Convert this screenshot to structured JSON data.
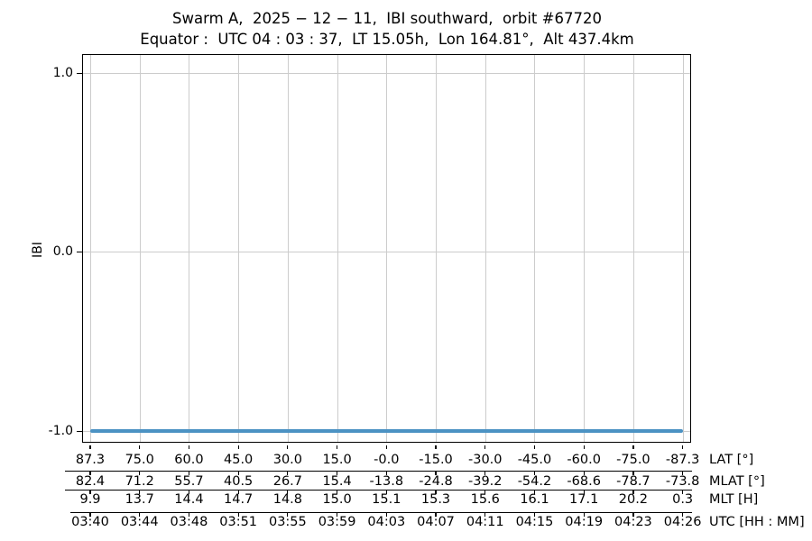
{
  "title": "Swarm A,  2025 − 12 − 11,  IBI southward,  orbit #67720",
  "subtitle": "Equator :  UTC 04 : 03 : 37,  LT 15.05h,  Lon 164.81°,  Alt 437.4km",
  "y_axis": {
    "label": "IBI",
    "ticks": [
      "1.0",
      "0.0",
      "-1.0"
    ]
  },
  "x_rows": [
    {
      "label": "LAT [°]",
      "values": [
        "87.3",
        "75.0",
        "60.0",
        "45.0",
        "30.0",
        "15.0",
        "-0.0",
        "-15.0",
        "-30.0",
        "-45.0",
        "-60.0",
        "-75.0",
        "-87.3"
      ]
    },
    {
      "label": "MLAT [°]",
      "values": [
        "82.4",
        "71.2",
        "55.7",
        "40.5",
        "26.7",
        "15.4",
        "-13.8",
        "-24.8",
        "-39.2",
        "-54.2",
        "-68.6",
        "-78.7",
        "-73.8"
      ]
    },
    {
      "label": "MLT [H]",
      "values": [
        "9.9",
        "13.7",
        "14.4",
        "14.7",
        "14.8",
        "15.0",
        "15.1",
        "15.3",
        "15.6",
        "16.1",
        "17.1",
        "20.2",
        "0.3"
      ]
    },
    {
      "label": "UTC [HH : MM]",
      "values": [
        "03:40",
        "03:44",
        "03:48",
        "03:51",
        "03:55",
        "03:59",
        "04:03",
        "04:07",
        "04:11",
        "04:15",
        "04:19",
        "04:23",
        "04:26"
      ]
    }
  ],
  "colors": {
    "line": "#4b92c3",
    "grid": "#cccccc",
    "axis": "#000000"
  },
  "chart_data": {
    "type": "line",
    "title": "Swarm A, 2025-12-11, IBI southward, orbit #67720",
    "subtitle": "Equator: UTC 04:03:37, LT 15.05h, Lon 164.81°, Alt 437.4km",
    "ylabel": "IBI",
    "ylim": [
      -1.1,
      1.1
    ],
    "yticks": [
      1.0,
      0.0,
      -1.0
    ],
    "grid": true,
    "legend": "none",
    "x_axis_rows": [
      {
        "name": "LAT [°]",
        "ticks": [
          87.3,
          75.0,
          60.0,
          45.0,
          30.0,
          15.0,
          -0.0,
          -15.0,
          -30.0,
          -45.0,
          -60.0,
          -75.0,
          -87.3
        ]
      },
      {
        "name": "MLAT [°]",
        "ticks": [
          82.4,
          71.2,
          55.7,
          40.5,
          26.7,
          15.4,
          -13.8,
          -24.8,
          -39.2,
          -54.2,
          -68.6,
          -78.7,
          -73.8
        ]
      },
      {
        "name": "MLT [H]",
        "ticks": [
          9.9,
          13.7,
          14.4,
          14.7,
          14.8,
          15.0,
          15.1,
          15.3,
          15.6,
          16.1,
          17.1,
          20.2,
          0.3
        ]
      },
      {
        "name": "UTC [HH:MM]",
        "ticks": [
          "03:40",
          "03:44",
          "03:48",
          "03:51",
          "03:55",
          "03:59",
          "04:03",
          "04:07",
          "04:11",
          "04:15",
          "04:19",
          "04:23",
          "04:26"
        ]
      }
    ],
    "series": [
      {
        "name": "IBI",
        "x": [
          "03:40",
          "03:44",
          "03:48",
          "03:51",
          "03:55",
          "03:59",
          "04:03",
          "04:07",
          "04:11",
          "04:15",
          "04:19",
          "04:23",
          "04:26"
        ],
        "values": [
          -1.0,
          -1.0,
          -1.0,
          -1.0,
          -1.0,
          -1.0,
          -1.0,
          -1.0,
          -1.0,
          -1.0,
          -1.0,
          -1.0,
          -1.0
        ],
        "color": "#4b92c3"
      }
    ]
  }
}
